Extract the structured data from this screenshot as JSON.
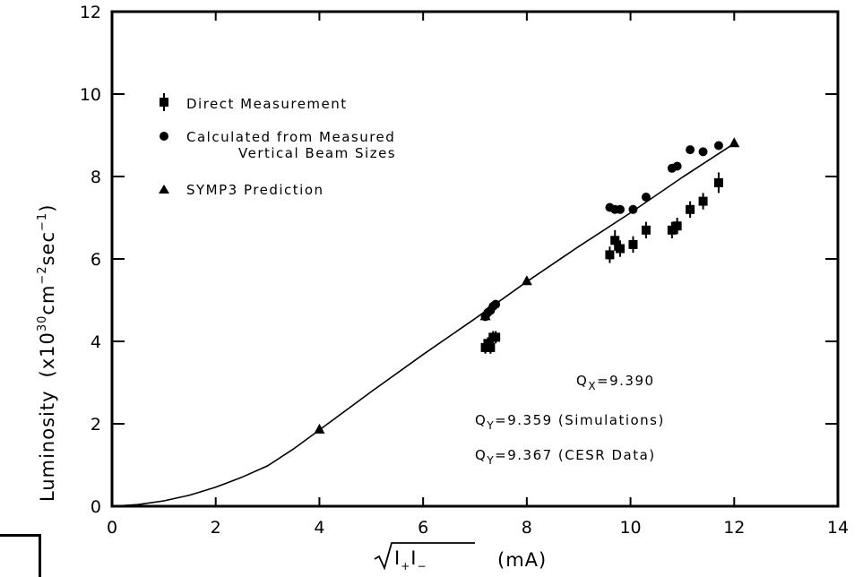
{
  "chart_data": {
    "type": "scatter",
    "xlabel": "(mA)",
    "ylabel": "Luminosity",
    "ylabel_units": "(x10",
    "ylabel_exp1": "30",
    "ylabel_cm": "cm",
    "ylabel_exp2": "−2",
    "ylabel_sec": "sec",
    "ylabel_exp3": "−1",
    "ylabel_close": ")",
    "xlabel_sqrt_I1": "I",
    "xlabel_sqrt_sub1": "+",
    "xlabel_sqrt_I2": "I",
    "xlabel_sqrt_sub2": "−",
    "xlim": [
      0,
      14
    ],
    "ylim": [
      0,
      12
    ],
    "x_ticks": [
      "0",
      "2",
      "4",
      "6",
      "8",
      "10",
      "12",
      "14"
    ],
    "y_ticks": [
      "0",
      "2",
      "4",
      "6",
      "8",
      "10",
      "12"
    ],
    "grid": false,
    "legend_position": "top-left",
    "series": [
      {
        "name": "Direct Measurement",
        "marker": "square-errorbar",
        "points": [
          {
            "x": 7.2,
            "y": 3.85,
            "err": 0.15
          },
          {
            "x": 7.25,
            "y": 3.95,
            "err": 0.15
          },
          {
            "x": 7.3,
            "y": 3.85,
            "err": 0.15
          },
          {
            "x": 7.35,
            "y": 4.1,
            "err": 0.15
          },
          {
            "x": 7.4,
            "y": 4.1,
            "err": 0.15
          },
          {
            "x": 9.6,
            "y": 6.1,
            "err": 0.2
          },
          {
            "x": 9.7,
            "y": 6.45,
            "err": 0.25
          },
          {
            "x": 9.8,
            "y": 6.25,
            "err": 0.2
          },
          {
            "x": 10.05,
            "y": 6.35,
            "err": 0.2
          },
          {
            "x": 10.3,
            "y": 6.7,
            "err": 0.2
          },
          {
            "x": 10.8,
            "y": 6.7,
            "err": 0.2
          },
          {
            "x": 10.9,
            "y": 6.8,
            "err": 0.2
          },
          {
            "x": 11.15,
            "y": 7.2,
            "err": 0.2
          },
          {
            "x": 11.4,
            "y": 7.4,
            "err": 0.2
          },
          {
            "x": 11.7,
            "y": 7.85,
            "err": 0.25
          }
        ]
      },
      {
        "name": "Calculated from Measured Vertical Beam Sizes",
        "marker": "circle",
        "points": [
          {
            "x": 7.2,
            "y": 4.6
          },
          {
            "x": 7.25,
            "y": 4.7
          },
          {
            "x": 7.3,
            "y": 4.75
          },
          {
            "x": 7.35,
            "y": 4.85
          },
          {
            "x": 7.4,
            "y": 4.9
          },
          {
            "x": 9.6,
            "y": 7.25
          },
          {
            "x": 9.7,
            "y": 7.2
          },
          {
            "x": 9.8,
            "y": 7.2
          },
          {
            "x": 10.05,
            "y": 7.2
          },
          {
            "x": 10.3,
            "y": 7.5
          },
          {
            "x": 10.8,
            "y": 8.2
          },
          {
            "x": 10.9,
            "y": 8.25
          },
          {
            "x": 11.15,
            "y": 8.65
          },
          {
            "x": 11.4,
            "y": 8.6
          },
          {
            "x": 11.7,
            "y": 8.75
          }
        ]
      },
      {
        "name": "SYMP3 Prediction",
        "marker": "triangle",
        "points": [
          {
            "x": 4.0,
            "y": 1.85
          },
          {
            "x": 7.2,
            "y": 4.6
          },
          {
            "x": 8.0,
            "y": 5.45
          },
          {
            "x": 12.0,
            "y": 8.8
          }
        ],
        "curve": [
          {
            "x": 0.0,
            "y": 0.0
          },
          {
            "x": 0.5,
            "y": 0.04
          },
          {
            "x": 1.0,
            "y": 0.13
          },
          {
            "x": 1.5,
            "y": 0.27
          },
          {
            "x": 2.0,
            "y": 0.46
          },
          {
            "x": 2.5,
            "y": 0.7
          },
          {
            "x": 3.0,
            "y": 0.98
          },
          {
            "x": 3.5,
            "y": 1.39
          },
          {
            "x": 4.0,
            "y": 1.85
          },
          {
            "x": 5.0,
            "y": 2.78
          },
          {
            "x": 6.0,
            "y": 3.68
          },
          {
            "x": 7.0,
            "y": 4.55
          },
          {
            "x": 8.0,
            "y": 5.45
          },
          {
            "x": 9.0,
            "y": 6.3
          },
          {
            "x": 10.0,
            "y": 7.12
          },
          {
            "x": 11.0,
            "y": 7.98
          },
          {
            "x": 12.0,
            "y": 8.8
          }
        ]
      }
    ],
    "legend": [
      {
        "label": "Direct Measurement",
        "marker": "square-errorbar"
      },
      {
        "label": "Calculated from Measured",
        "label2": "Vertical Beam Sizes",
        "marker": "circle"
      },
      {
        "label": "SYMP3 Prediction",
        "marker": "triangle"
      }
    ],
    "annotations": {
      "qx_label": "Q",
      "qx_sub": "X",
      "qx_value": "=9.390",
      "qy1_label": "Q",
      "qy1_sub": "Y",
      "qy1_value": "=9.359 (Simulations)",
      "qy2_label": "Q",
      "qy2_sub": "Y",
      "qy2_value": "=9.367 (CESR Data)"
    }
  }
}
